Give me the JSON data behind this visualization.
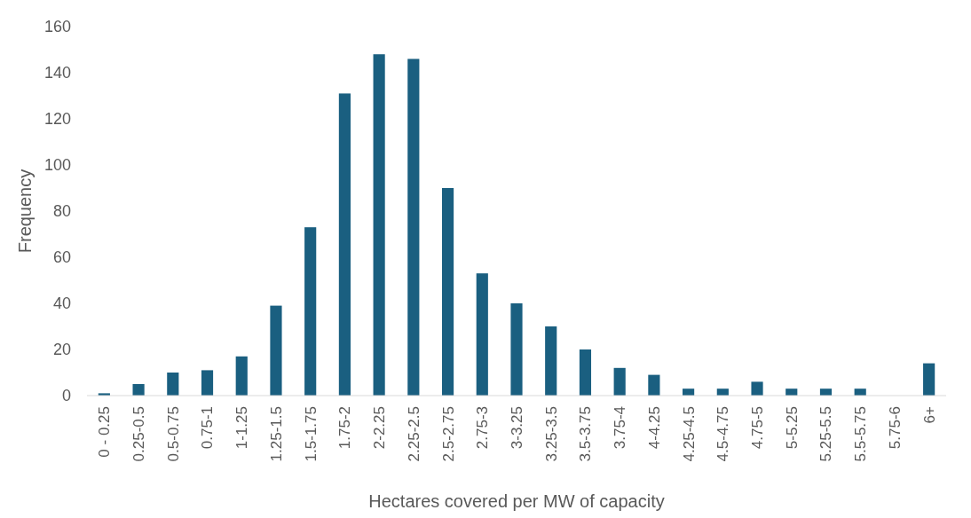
{
  "chart_data": {
    "type": "bar",
    "xlabel": "Hectares covered per MW of capacity",
    "ylabel": "Frequency",
    "categories": [
      "0 - 0.25",
      "0.25-0.5",
      "0.5-0.75",
      "0.75-1",
      "1-1.25",
      "1.25-1.5",
      "1.5-1.75",
      "1.75-2",
      "2-2.25",
      "2.25-2.5",
      "2.5-2.75",
      "2.75-3",
      "3-3.25",
      "3.25-3.5",
      "3.5-3.75",
      "3.75-4",
      "4-4.25",
      "4.25-4.5",
      "4.5-4.75",
      "4.75-5",
      "5-5.25",
      "5.25-5.5",
      "5.5-5.75",
      "5.75-6",
      "6+"
    ],
    "series": [
      {
        "color": "#1a5f80",
        "values": [
          1,
          5,
          10,
          11,
          17,
          39,
          73,
          131,
          148,
          146,
          90,
          53,
          40,
          30,
          20,
          12,
          9,
          3,
          3,
          6,
          3,
          3,
          3,
          0,
          14
        ]
      }
    ],
    "ylim": [
      0,
      160
    ],
    "yticks": [
      0,
      20,
      40,
      60,
      80,
      100,
      120,
      140,
      160
    ],
    "grid": false
  }
}
